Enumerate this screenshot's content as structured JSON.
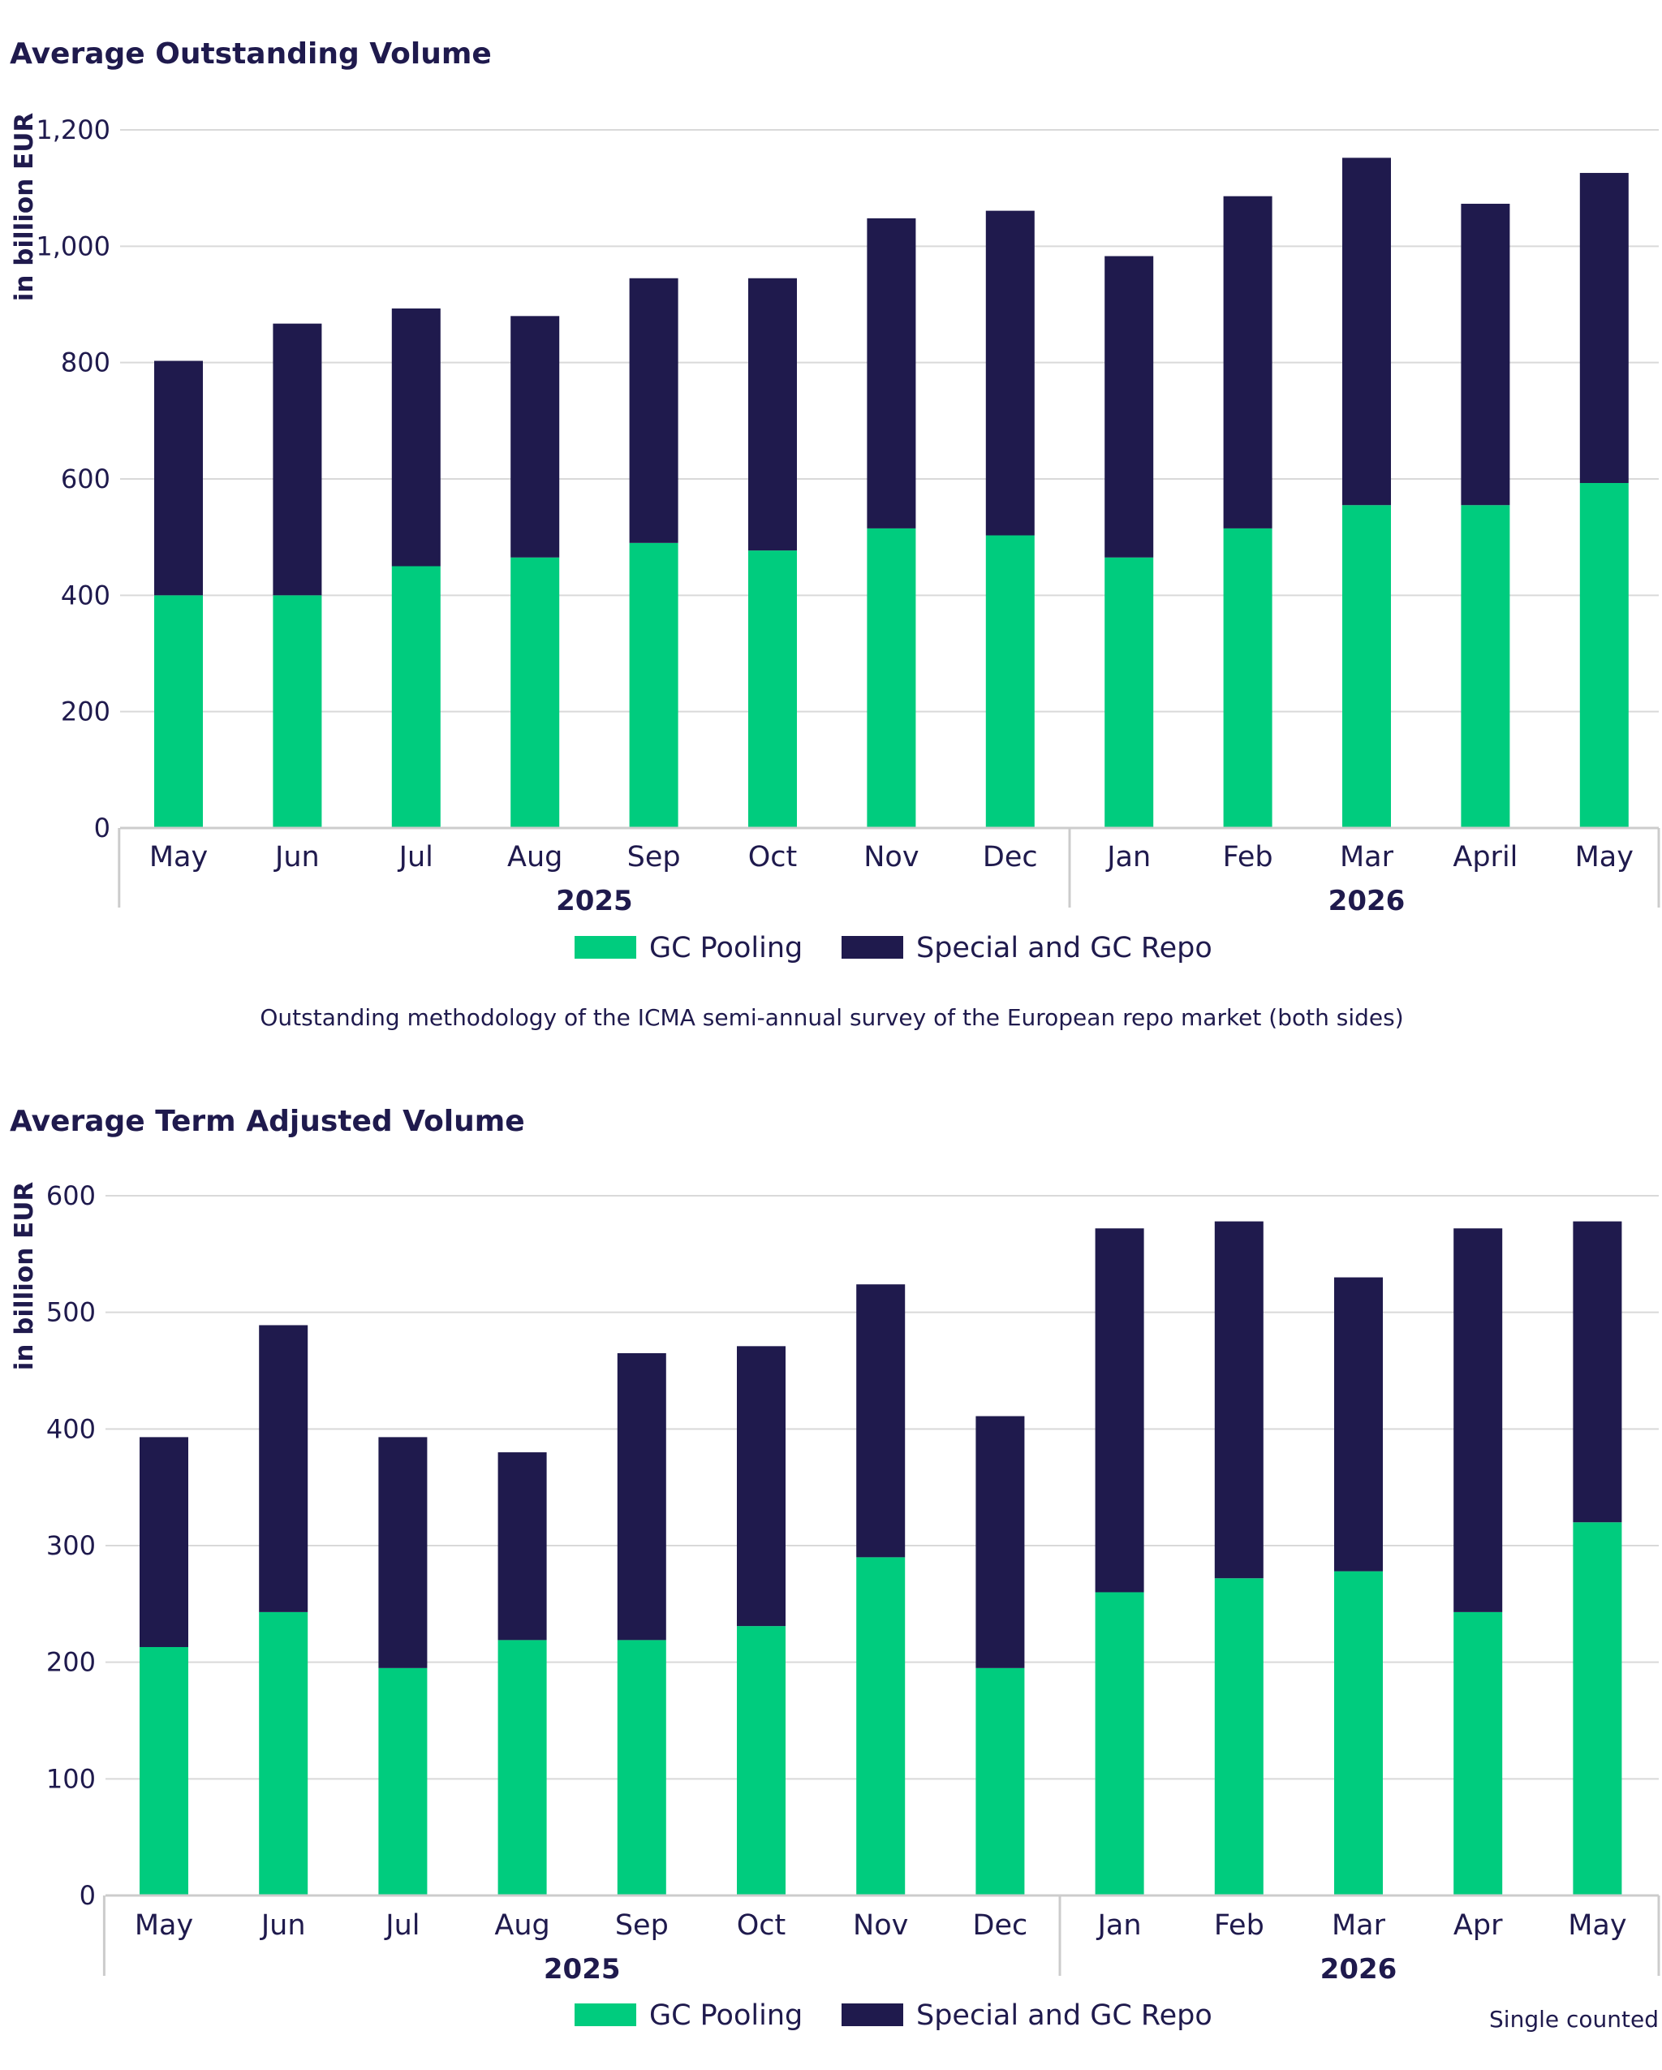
{
  "colors": {
    "gc_pooling": "#00cc7e",
    "special_gc_repo": "#1f1a4d",
    "grid": "#d9d9d9",
    "text": "#1f1a4d"
  },
  "chart_data": [
    {
      "type": "bar",
      "stacked": true,
      "title": "Average Outstanding Volume",
      "ylabel": "in billion EUR",
      "ylim": [
        0,
        1200
      ],
      "yticks": [
        "0",
        "200",
        "400",
        "600",
        "800",
        "1,000",
        "1,200"
      ],
      "categories": [
        "May",
        "Jun",
        "Jul",
        "Aug",
        "Sep",
        "Oct",
        "Nov",
        "Dec",
        "Jan",
        "Feb",
        "Mar",
        "April",
        "May"
      ],
      "groups": [
        {
          "label": "2025",
          "span": 8
        },
        {
          "label": "2026",
          "span": 5
        }
      ],
      "series": [
        {
          "name": "GC Pooling",
          "values": [
            400,
            400,
            450,
            465,
            490,
            477,
            515,
            503,
            465,
            515,
            555,
            555,
            593
          ]
        },
        {
          "name": "Special and GC Repo",
          "values": [
            403,
            467,
            443,
            415,
            455,
            468,
            533,
            558,
            518,
            571,
            597,
            518,
            533
          ]
        }
      ],
      "legend": "bottom-center",
      "note": "Outstanding methodology of the ICMA semi-annual survey of the European repo market (both sides)"
    },
    {
      "type": "bar",
      "stacked": true,
      "title": "Average Term Adjusted Volume",
      "ylabel": "in billion EUR",
      "ylim": [
        0,
        600
      ],
      "yticks": [
        "0",
        "100",
        "200",
        "300",
        "400",
        "500",
        "600"
      ],
      "categories": [
        "May",
        "Jun",
        "Jul",
        "Aug",
        "Sep",
        "Oct",
        "Nov",
        "Dec",
        "Jan",
        "Feb",
        "Mar",
        "Apr",
        "May"
      ],
      "groups": [
        {
          "label": "2025",
          "span": 8
        },
        {
          "label": "2026",
          "span": 5
        }
      ],
      "series": [
        {
          "name": "GC Pooling",
          "values": [
            213,
            243,
            195,
            219,
            219,
            231,
            290,
            195,
            260,
            272,
            278,
            243,
            320
          ]
        },
        {
          "name": "Special and GC Repo",
          "values": [
            180,
            246,
            198,
            161,
            246,
            240,
            234,
            216,
            312,
            306,
            252,
            329,
            258
          ]
        }
      ],
      "legend": "bottom-center",
      "note": "Single counted"
    }
  ]
}
